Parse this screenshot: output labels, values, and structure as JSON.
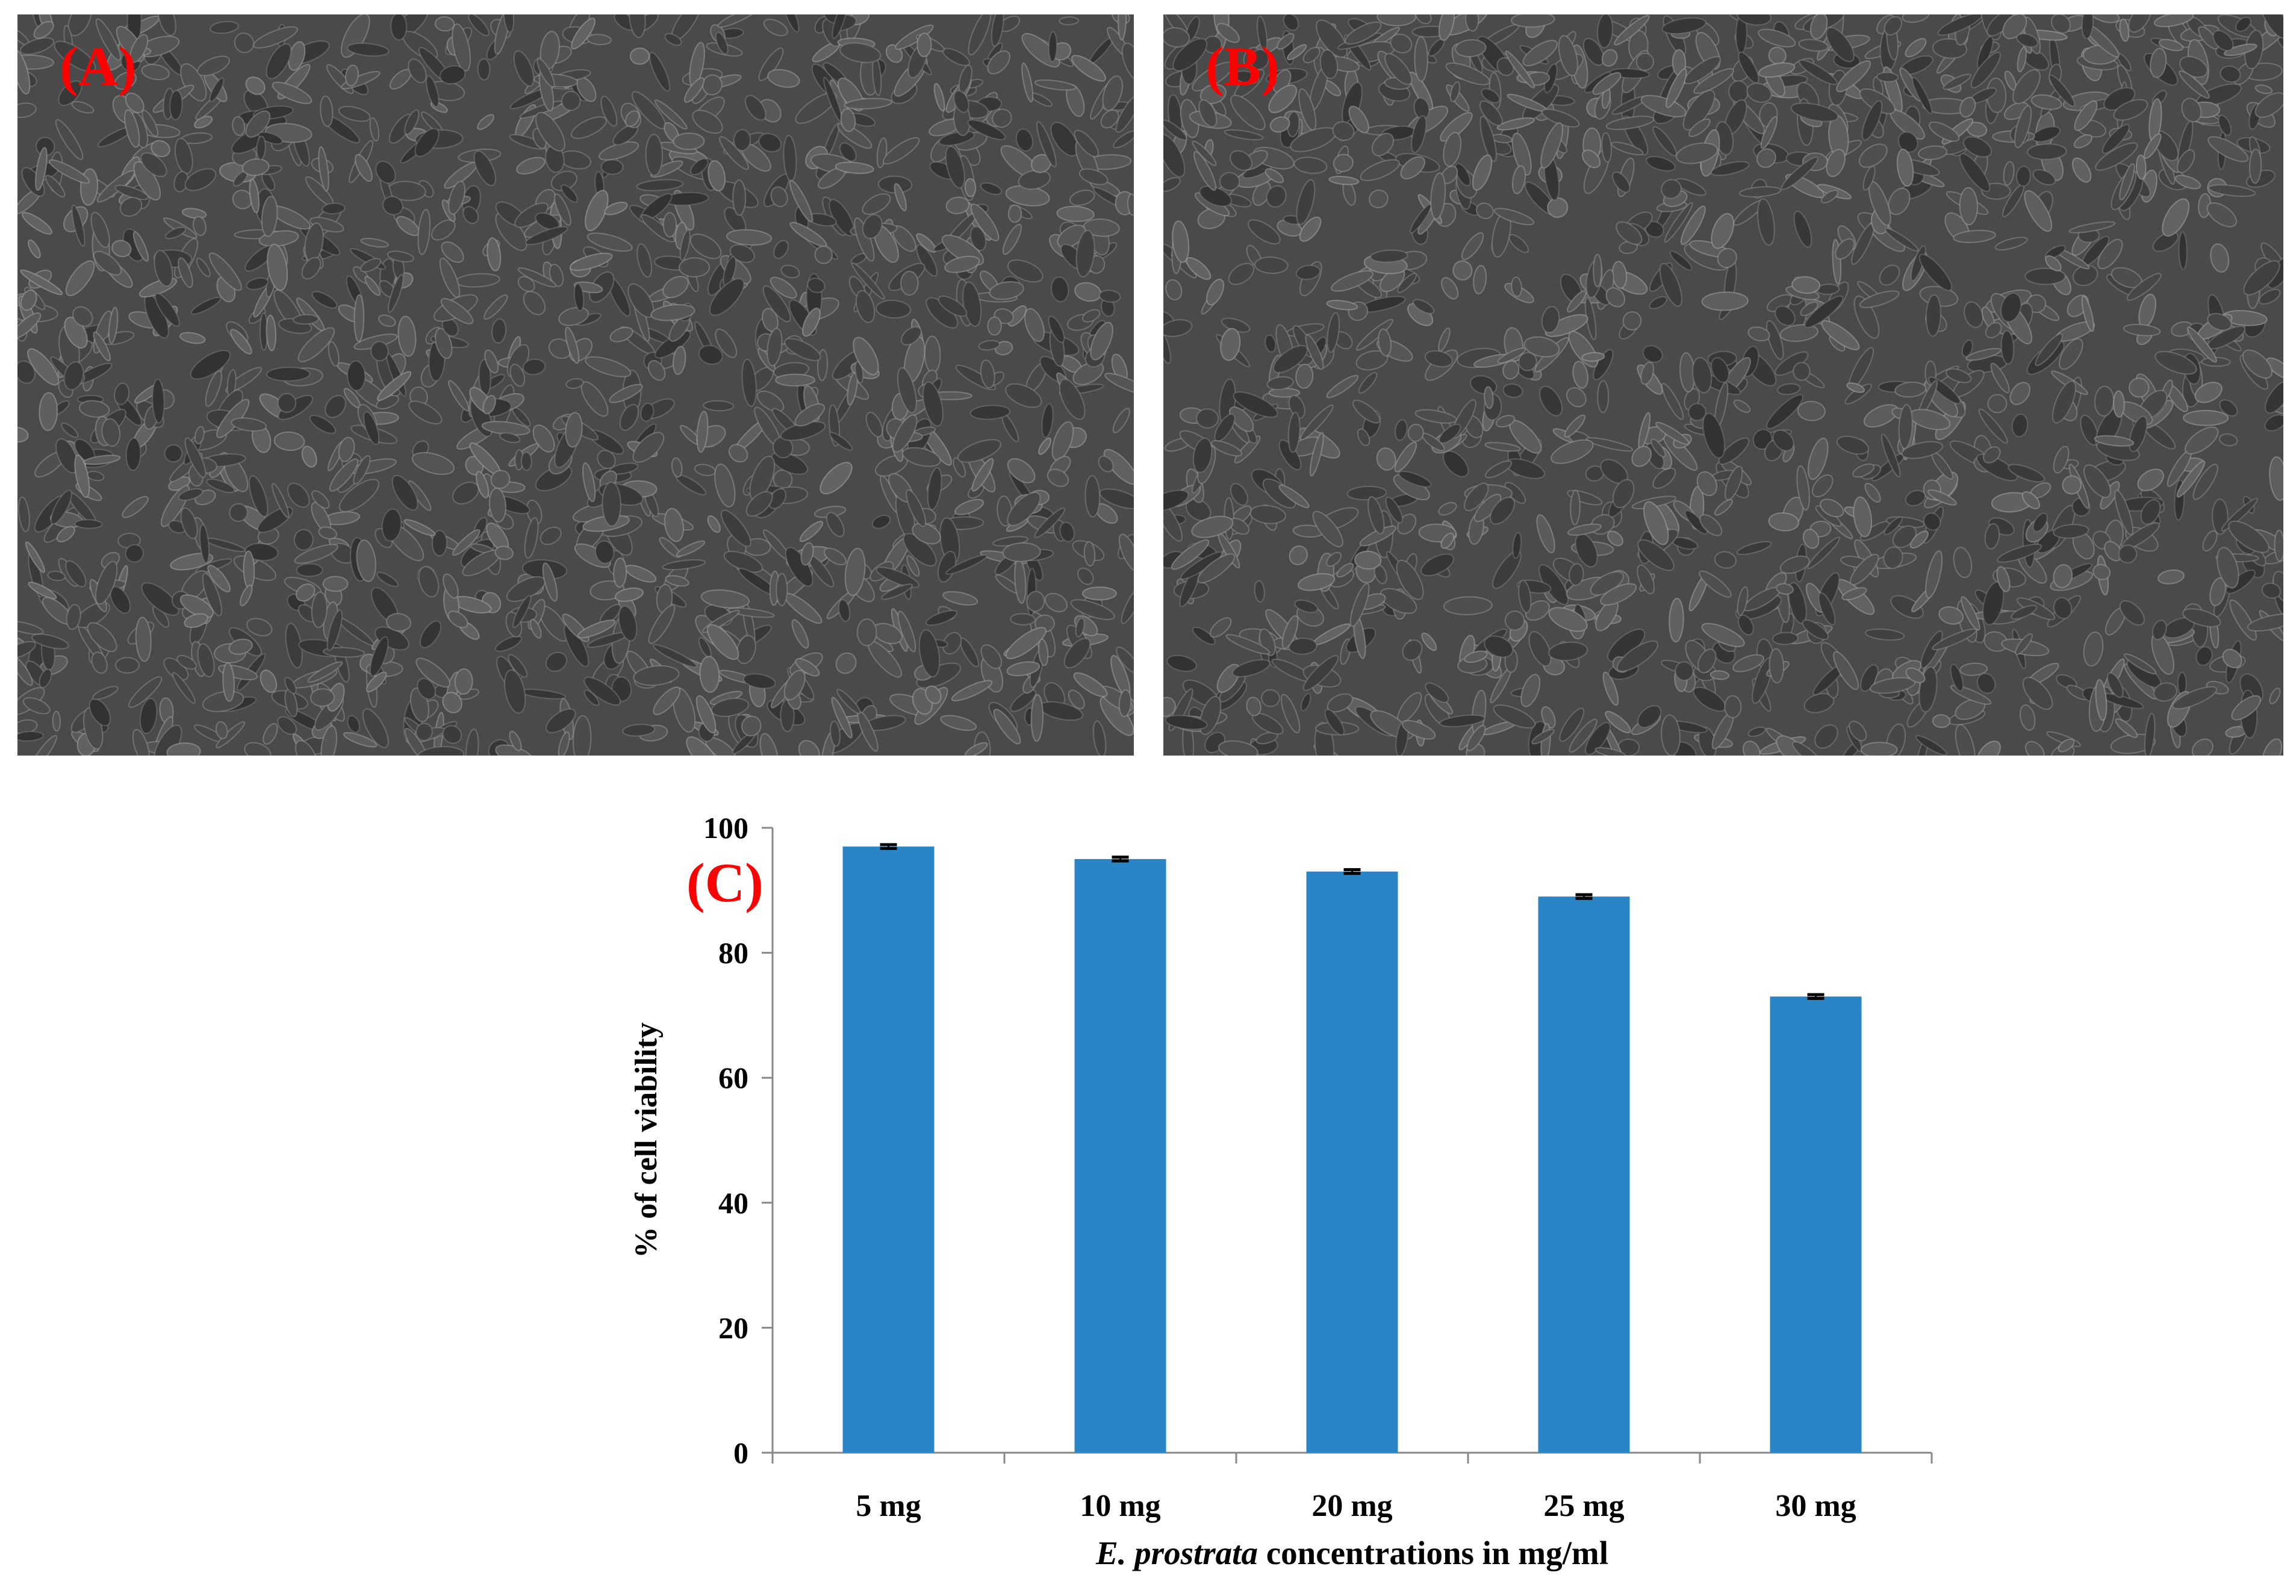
{
  "panels": [
    {
      "label": "(A)"
    },
    {
      "label": "(B)"
    }
  ],
  "chart_label": "(C)",
  "colors": {
    "bar": "#2a85c6",
    "panel_label": "#ff0000",
    "axis": "#888888",
    "text": "#000000",
    "micrograph_bg": "#4a4a4a"
  },
  "chart_data": {
    "type": "bar",
    "categories": [
      "5 mg",
      "10 mg",
      "20 mg",
      "25 mg",
      "30 mg"
    ],
    "values": [
      97,
      95,
      93,
      89,
      73
    ],
    "errors": [
      0.3,
      0.3,
      0.3,
      0.3,
      0.3
    ],
    "title": "",
    "xlabel_italic": "E. prostrata",
    "xlabel_rest": " concentrations in mg/ml",
    "ylabel": "% of cell viability",
    "ylim": [
      0,
      100
    ],
    "yticks": [
      0,
      20,
      40,
      60,
      80,
      100
    ],
    "grid": false,
    "legend": "none"
  }
}
